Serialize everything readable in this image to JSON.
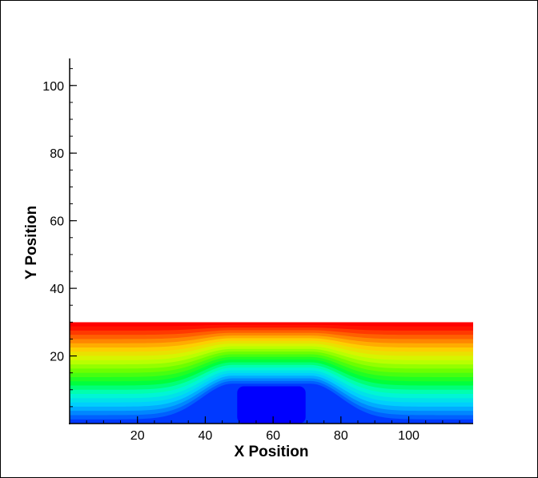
{
  "chart_data": {
    "type": "heatmap",
    "title": "",
    "xlabel": "X Position",
    "ylabel": "Y Position",
    "xlim": [
      0,
      119
    ],
    "ylim": [
      0,
      108
    ],
    "x_ticks": [
      20,
      40,
      60,
      80,
      100
    ],
    "y_ticks": [
      20,
      40,
      60,
      80,
      100
    ],
    "x_minor_step": 5,
    "y_minor_step": 5,
    "grid": false,
    "legend": "none",
    "colormap": [
      "#0000ff",
      "#0066ff",
      "#00ccff",
      "#00ffcc",
      "#00ff33",
      "#66ff00",
      "#ccff00",
      "#ffcc00",
      "#ff6600",
      "#ff0000"
    ],
    "field": {
      "description": "filled contours of a field that increases with Y from 0 at the bottom to a maximum at the top edge (Y=30), depressed over a rectangular obstacle",
      "domain_x": [
        0,
        119
      ],
      "domain_y": [
        0,
        30
      ],
      "contour_levels": 24,
      "obstacle": {
        "x": [
          48,
          71
        ],
        "y": [
          0,
          11
        ]
      }
    }
  }
}
